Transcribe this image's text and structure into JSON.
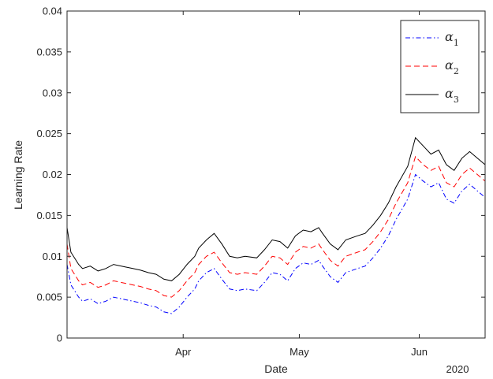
{
  "chart_data": {
    "type": "line",
    "title": "",
    "xlabel": "Date",
    "ylabel": "Learning Rate",
    "x_tick_labels": [
      "Apr",
      "May",
      "Jun"
    ],
    "x_secondary_label": "2020",
    "x_range": [
      "2020-03-02",
      "2020-06-18"
    ],
    "x_ticks": [
      "2020-04-01",
      "2020-05-01",
      "2020-06-01"
    ],
    "ylim": [
      0,
      0.04
    ],
    "y_ticks": [
      0,
      0.005,
      0.01,
      0.015,
      0.02,
      0.025,
      0.03,
      0.035,
      0.04
    ],
    "y_tick_labels": [
      "0",
      "0.005",
      "0.01",
      "0.015",
      "0.02",
      "0.025",
      "0.03",
      "0.035",
      "0.04"
    ],
    "grid": false,
    "legend_position": "top-right",
    "series": [
      {
        "name": "α",
        "name_subscript": "1",
        "color": "#0000ff",
        "dash": "dash-dot",
        "x": [
          "2020-03-02",
          "2020-03-03",
          "2020-03-05",
          "2020-03-06",
          "2020-03-08",
          "2020-03-10",
          "2020-03-12",
          "2020-03-14",
          "2020-03-17",
          "2020-03-19",
          "2020-03-21",
          "2020-03-23",
          "2020-03-25",
          "2020-03-27",
          "2020-03-29",
          "2020-03-31",
          "2020-04-02",
          "2020-04-04",
          "2020-04-05",
          "2020-04-07",
          "2020-04-09",
          "2020-04-11",
          "2020-04-13",
          "2020-04-15",
          "2020-04-17",
          "2020-04-20",
          "2020-04-22",
          "2020-04-24",
          "2020-04-26",
          "2020-04-28",
          "2020-04-30",
          "2020-05-02",
          "2020-05-04",
          "2020-05-06",
          "2020-05-07",
          "2020-05-09",
          "2020-05-11",
          "2020-05-13",
          "2020-05-16",
          "2020-05-18",
          "2020-05-20",
          "2020-05-22",
          "2020-05-24",
          "2020-05-26",
          "2020-05-29",
          "2020-05-31",
          "2020-06-02",
          "2020-06-04",
          "2020-06-06",
          "2020-06-08",
          "2020-06-10",
          "2020-06-12",
          "2020-06-14",
          "2020-06-16",
          "2020-06-18"
        ],
        "values": [
          0.009,
          0.0065,
          0.005,
          0.0045,
          0.0048,
          0.0042,
          0.0045,
          0.005,
          0.0047,
          0.0045,
          0.0043,
          0.004,
          0.0038,
          0.0032,
          0.003,
          0.0038,
          0.005,
          0.006,
          0.007,
          0.008,
          0.0085,
          0.0072,
          0.006,
          0.0058,
          0.006,
          0.0058,
          0.0068,
          0.008,
          0.0078,
          0.007,
          0.0085,
          0.0092,
          0.009,
          0.0095,
          0.0088,
          0.0075,
          0.0068,
          0.008,
          0.0085,
          0.0088,
          0.0098,
          0.011,
          0.0125,
          0.0145,
          0.017,
          0.02,
          0.0192,
          0.0185,
          0.019,
          0.017,
          0.0165,
          0.018,
          0.0188,
          0.018,
          0.0172
        ]
      },
      {
        "name": "α",
        "name_subscript": "2",
        "color": "#ff0000",
        "dash": "dashed",
        "x": [
          "2020-03-02",
          "2020-03-03",
          "2020-03-05",
          "2020-03-06",
          "2020-03-08",
          "2020-03-10",
          "2020-03-12",
          "2020-03-14",
          "2020-03-17",
          "2020-03-19",
          "2020-03-21",
          "2020-03-23",
          "2020-03-25",
          "2020-03-27",
          "2020-03-29",
          "2020-03-31",
          "2020-04-02",
          "2020-04-04",
          "2020-04-05",
          "2020-04-07",
          "2020-04-09",
          "2020-04-11",
          "2020-04-13",
          "2020-04-15",
          "2020-04-17",
          "2020-04-20",
          "2020-04-22",
          "2020-04-24",
          "2020-04-26",
          "2020-04-28",
          "2020-04-30",
          "2020-05-02",
          "2020-05-04",
          "2020-05-06",
          "2020-05-07",
          "2020-05-09",
          "2020-05-11",
          "2020-05-13",
          "2020-05-16",
          "2020-05-18",
          "2020-05-20",
          "2020-05-22",
          "2020-05-24",
          "2020-05-26",
          "2020-05-29",
          "2020-05-31",
          "2020-06-02",
          "2020-06-04",
          "2020-06-06",
          "2020-06-08",
          "2020-06-10",
          "2020-06-12",
          "2020-06-14",
          "2020-06-16",
          "2020-06-18"
        ],
        "values": [
          0.0115,
          0.0085,
          0.007,
          0.0065,
          0.0068,
          0.0062,
          0.0065,
          0.007,
          0.0067,
          0.0065,
          0.0063,
          0.006,
          0.0058,
          0.0052,
          0.005,
          0.0058,
          0.007,
          0.008,
          0.009,
          0.01,
          0.0105,
          0.0092,
          0.008,
          0.0078,
          0.008,
          0.0078,
          0.0088,
          0.01,
          0.0098,
          0.009,
          0.0105,
          0.0112,
          0.011,
          0.0115,
          0.0108,
          0.0095,
          0.0088,
          0.01,
          0.0105,
          0.0108,
          0.0118,
          0.013,
          0.0145,
          0.0165,
          0.019,
          0.0222,
          0.0212,
          0.0205,
          0.021,
          0.019,
          0.0185,
          0.02,
          0.0208,
          0.02,
          0.0192
        ]
      },
      {
        "name": "α",
        "name_subscript": "3",
        "color": "#000000",
        "dash": "solid",
        "x": [
          "2020-03-02",
          "2020-03-03",
          "2020-03-05",
          "2020-03-06",
          "2020-03-08",
          "2020-03-10",
          "2020-03-12",
          "2020-03-14",
          "2020-03-17",
          "2020-03-19",
          "2020-03-21",
          "2020-03-23",
          "2020-03-25",
          "2020-03-27",
          "2020-03-29",
          "2020-03-31",
          "2020-04-02",
          "2020-04-04",
          "2020-04-05",
          "2020-04-07",
          "2020-04-09",
          "2020-04-11",
          "2020-04-13",
          "2020-04-15",
          "2020-04-17",
          "2020-04-20",
          "2020-04-22",
          "2020-04-24",
          "2020-04-26",
          "2020-04-28",
          "2020-04-30",
          "2020-05-02",
          "2020-05-04",
          "2020-05-06",
          "2020-05-07",
          "2020-05-09",
          "2020-05-11",
          "2020-05-13",
          "2020-05-16",
          "2020-05-18",
          "2020-05-20",
          "2020-05-22",
          "2020-05-24",
          "2020-05-26",
          "2020-05-29",
          "2020-05-31",
          "2020-06-02",
          "2020-06-04",
          "2020-06-06",
          "2020-06-08",
          "2020-06-10",
          "2020-06-12",
          "2020-06-14",
          "2020-06-16",
          "2020-06-18"
        ],
        "values": [
          0.0135,
          0.0105,
          0.009,
          0.0085,
          0.0088,
          0.0082,
          0.0085,
          0.009,
          0.0087,
          0.0085,
          0.0083,
          0.008,
          0.0078,
          0.0072,
          0.007,
          0.0078,
          0.009,
          0.01,
          0.011,
          0.012,
          0.0128,
          0.0115,
          0.01,
          0.0098,
          0.01,
          0.0098,
          0.0108,
          0.012,
          0.0118,
          0.011,
          0.0125,
          0.0132,
          0.013,
          0.0135,
          0.0128,
          0.0115,
          0.0108,
          0.012,
          0.0125,
          0.0128,
          0.0138,
          0.015,
          0.0165,
          0.0185,
          0.021,
          0.0245,
          0.0235,
          0.0225,
          0.023,
          0.0212,
          0.0205,
          0.022,
          0.0228,
          0.022,
          0.0212
        ]
      }
    ]
  }
}
